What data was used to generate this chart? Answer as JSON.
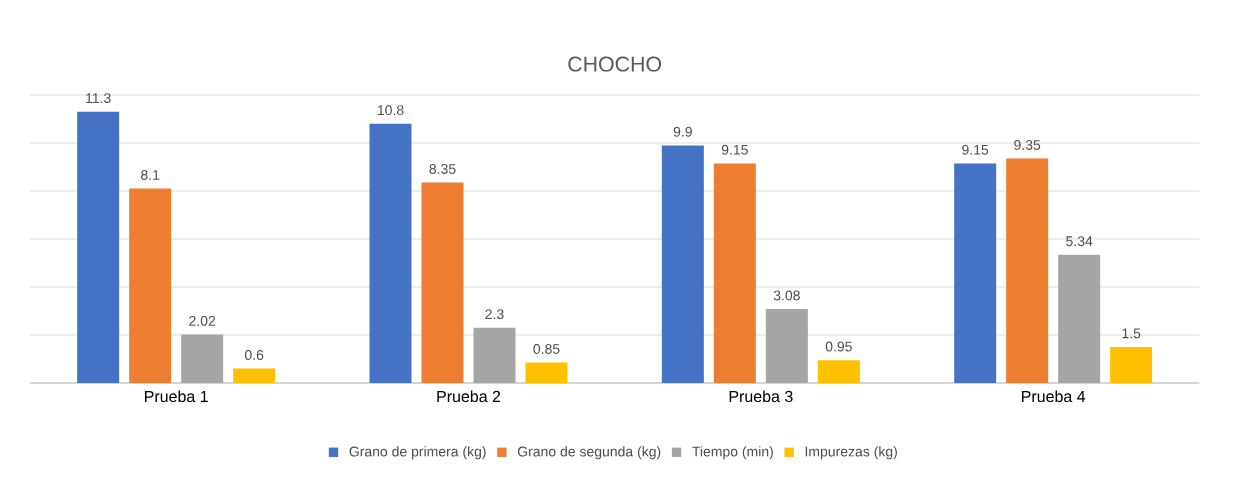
{
  "chart_data": {
    "type": "bar",
    "title": "CHOCHO",
    "categories": [
      "Prueba 1",
      "Prueba 2",
      "Prueba 3",
      "Prueba 4"
    ],
    "series": [
      {
        "name": "Grano de primera (kg)",
        "color": "#4472c4",
        "values": [
          11.3,
          10.8,
          9.9,
          9.15
        ]
      },
      {
        "name": "Grano de segunda (kg)",
        "color": "#ed7d31",
        "values": [
          8.1,
          8.35,
          9.15,
          9.35
        ]
      },
      {
        "name": "Tiempo (min)",
        "color": "#a5a5a5",
        "values": [
          2.02,
          2.3,
          3.08,
          5.34
        ]
      },
      {
        "name": "Impurezas (kg)",
        "color": "#ffc000",
        "values": [
          0.6,
          0.85,
          0.95,
          1.5
        ]
      }
    ],
    "yticks": [
      {
        "value": 0,
        "label": null
      },
      {
        "value": 2,
        "label": null
      },
      {
        "value": 4,
        "label": null
      },
      {
        "value": 6,
        "label": null
      },
      {
        "value": 8,
        "label": null
      },
      {
        "value": 10,
        "label": null
      },
      {
        "value": 12,
        "label": null
      }
    ],
    "grid": "y",
    "tick_labels": "x",
    "data_labels": true,
    "legend": "bottom"
  }
}
